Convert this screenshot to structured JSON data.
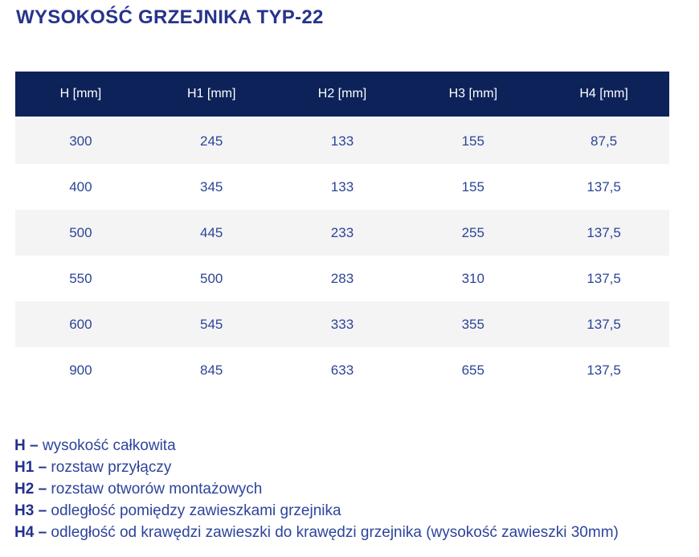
{
  "page": {
    "title": "WYSOKOŚĆ GRZEJNIKA TYP-22"
  },
  "table": {
    "columns": [
      "H [mm]",
      "H1 [mm]",
      "H2 [mm]",
      "H3 [mm]",
      "H4 [mm]"
    ],
    "rows": [
      [
        "300",
        "245",
        "133",
        "155",
        "87,5"
      ],
      [
        "400",
        "345",
        "133",
        "155",
        "137,5"
      ],
      [
        "500",
        "445",
        "233",
        "255",
        "137,5"
      ],
      [
        "550",
        "500",
        "283",
        "310",
        "137,5"
      ],
      [
        "600",
        "545",
        "333",
        "355",
        "137,5"
      ],
      [
        "900",
        "845",
        "633",
        "655",
        "137,5"
      ]
    ]
  },
  "legend": [
    {
      "term": "H –",
      "description": "wysokość całkowita"
    },
    {
      "term": "H1 –",
      "description": "rozstaw przyłączy"
    },
    {
      "term": "H2 –",
      "description": "rozstaw otworów montażowych"
    },
    {
      "term": "H3 –",
      "description": "odległość pomiędzy zawieszkami grzejnika"
    },
    {
      "term": "H4 –",
      "description": "odległość od krawędzi zawieszki do krawędzi grzejnika (wysokość zawieszki 30mm)"
    }
  ],
  "colors": {
    "title_blue": "#27348b",
    "header_bg": "#0d2259",
    "header_text": "#ffffff",
    "row_alt_bg": "#f4f4f5",
    "cell_blue": "#2c4596",
    "legend_term": "#22308d",
    "legend_text": "#2d449c"
  }
}
